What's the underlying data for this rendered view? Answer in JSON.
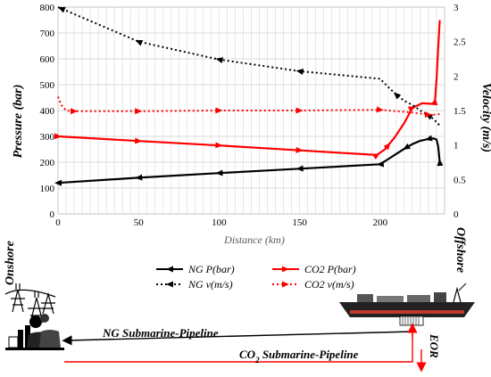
{
  "chart_data": {
    "type": "line",
    "xlabel": "Distance (km)",
    "ylabel_left": "Pressure (bar)",
    "ylabel_right": "Velocity (m/s)",
    "xlim": [
      0,
      240
    ],
    "ylim_left": [
      0,
      800
    ],
    "ylim_right": [
      0,
      3
    ],
    "xticks": [
      "0",
      "50",
      "100",
      "150",
      "200"
    ],
    "yticks_left": [
      "0",
      "100",
      "200",
      "300",
      "400",
      "500",
      "600",
      "700",
      "800"
    ],
    "yticks_right": [
      "0",
      "0.5",
      "1",
      "1.5",
      "2",
      "2.5",
      "3"
    ],
    "grid": true,
    "legend_position": "bottom",
    "series": [
      {
        "name": "NG P(bar)",
        "axis": "left",
        "color": "#000000",
        "style": "solid",
        "x": [
          0,
          50,
          100,
          150,
          200,
          205,
          210,
          215,
          220,
          225,
          230,
          233,
          235,
          236,
          237
        ],
        "y": [
          120,
          140,
          158,
          175,
          192,
          212,
          232,
          252,
          270,
          283,
          290,
          292,
          288,
          262,
          200
        ]
      },
      {
        "name": "CO2 P(bar)",
        "axis": "left",
        "color": "#ff0000",
        "style": "solid",
        "x": [
          0,
          50,
          100,
          150,
          198,
          203,
          209,
          215,
          220,
          226,
          232,
          234,
          235,
          236,
          237
        ],
        "y": [
          300,
          282,
          265,
          246,
          228,
          250,
          296,
          352,
          410,
          428,
          426,
          435,
          520,
          640,
          750
        ]
      },
      {
        "name": "NG v(m/s)",
        "axis": "right",
        "color": "#000000",
        "style": "dotted",
        "x": [
          0,
          50,
          100,
          150,
          200,
          205,
          210,
          215,
          220,
          225,
          230,
          233,
          235,
          237
        ],
        "y": [
          3.0,
          2.5,
          2.24,
          2.07,
          1.96,
          1.84,
          1.73,
          1.64,
          1.58,
          1.5,
          1.43,
          1.38,
          1.33,
          1.28
        ]
      },
      {
        "name": "CO2 v(m/s)",
        "axis": "right",
        "color": "#ff0000",
        "style": "dotted",
        "x": [
          0,
          2,
          5,
          10,
          50,
          100,
          150,
          200,
          210,
          220,
          230,
          235,
          237
        ],
        "y": [
          1.7,
          1.58,
          1.5,
          1.49,
          1.49,
          1.5,
          1.5,
          1.51,
          1.49,
          1.47,
          1.44,
          1.44,
          1.45
        ]
      }
    ]
  },
  "labels": {
    "onshore": "Onshore",
    "offshore": "Offshore",
    "ng_pipeline": "NG Submarine-Pipeline",
    "co2_pipeline_pre": "CO",
    "co2_pipeline_sub": "2",
    "co2_pipeline_post": " Submarine-Pipeline",
    "eor": "EOR"
  },
  "icons": {
    "plant": "power-plant-icon",
    "vessel": "floating-production-vessel-icon"
  }
}
